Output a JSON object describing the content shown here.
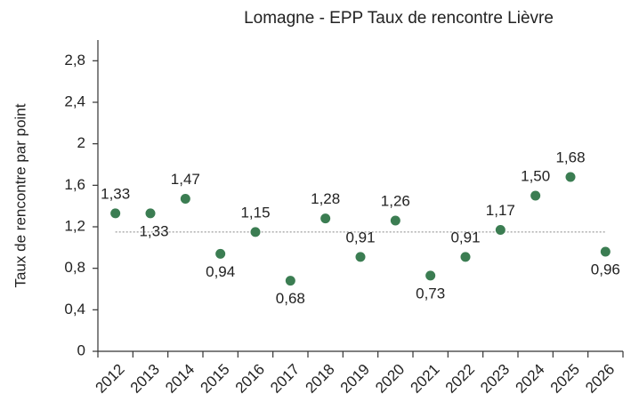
{
  "chart_data": {
    "type": "scatter",
    "title": "Lomagne - EPP Taux de rencontre Lièvre",
    "y_label": "Taux de rencontre par point",
    "categories": [
      "2012",
      "2013",
      "2014",
      "2015",
      "2016",
      "2017",
      "2018",
      "2019",
      "2020",
      "2021",
      "2022",
      "2023",
      "2024",
      "2025",
      "2026"
    ],
    "values": [
      1.33,
      1.33,
      1.47,
      0.94,
      1.15,
      0.68,
      1.28,
      0.91,
      1.26,
      0.73,
      0.91,
      1.17,
      1.5,
      1.68,
      0.96
    ],
    "value_labels": [
      "1,33",
      "1,33",
      "1,47",
      "0,94",
      "1,15",
      "0,68",
      "1,28",
      "0,91",
      "1,26",
      "0,73",
      "0,91",
      "1,17",
      "1,50",
      "1,68",
      "0,96"
    ],
    "color": "#3b7d52",
    "reference_line": 1.15,
    "ylim": [
      0,
      3
    ],
    "yticks": [
      0,
      {
        "value": 0.4,
        "label": "0,4"
      },
      {
        "value": 0.8,
        "label": "0,8"
      },
      {
        "value": 1.2,
        "label": "1,2"
      },
      {
        "value": 1.6,
        "label": "1,6"
      },
      2,
      {
        "value": 2.4,
        "label": "2,4"
      },
      {
        "value": 2.8,
        "label": "2,8"
      }
    ],
    "grid": false
  }
}
